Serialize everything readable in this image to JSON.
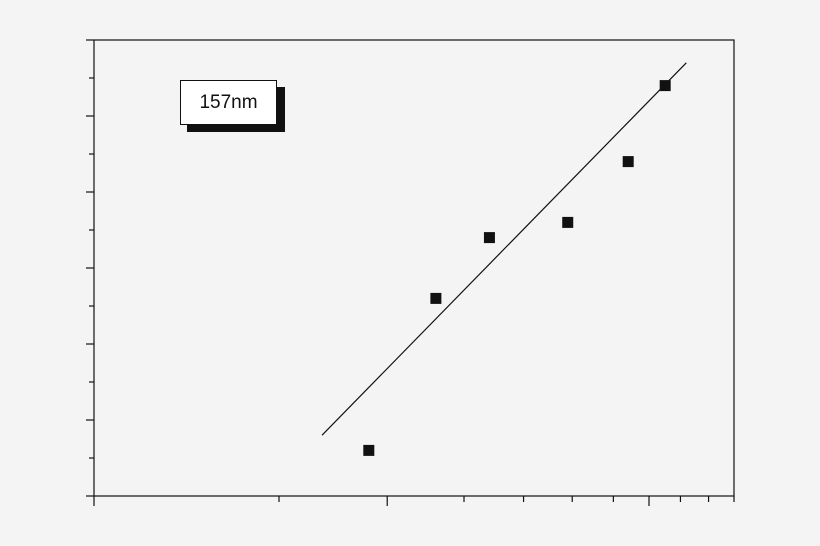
{
  "chart_data": {
    "type": "scatter",
    "title": "",
    "xlabel": "",
    "ylabel": "",
    "x_scale": "log",
    "grid": false,
    "legend": {
      "text": "157nm",
      "placement": "top-left"
    },
    "series": [
      {
        "name": "157nm",
        "marker": "square",
        "points": [
          {
            "x": 2.8,
            "y": 0.6
          },
          {
            "x": 3.6,
            "y": 2.6
          },
          {
            "x": 4.4,
            "y": 3.4
          },
          {
            "x": 5.9,
            "y": 3.6
          },
          {
            "x": 7.4,
            "y": 4.4
          },
          {
            "x": 8.5,
            "y": 5.4
          }
        ]
      }
    ],
    "fit_line": {
      "x": [
        2.35,
        9.2
      ],
      "y": [
        0.8,
        5.7
      ]
    },
    "xlim": [
      1,
      11
    ],
    "ylim": [
      0,
      6
    ],
    "colors": {
      "background": "#f4f4f4",
      "ink": "#111111"
    }
  }
}
